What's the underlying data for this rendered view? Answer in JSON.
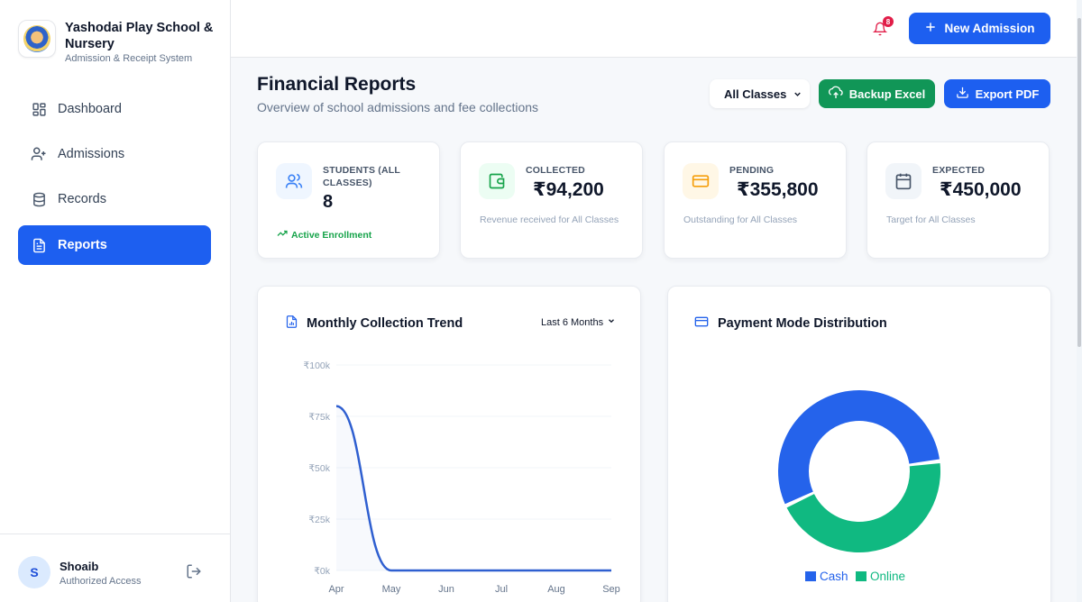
{
  "sidebar": {
    "brand_name": "Yashodai Play School & Nursery",
    "brand_sub": "Admission & Receipt System",
    "items": [
      {
        "label": "Dashboard",
        "icon": "grid-icon"
      },
      {
        "label": "Admissions",
        "icon": "user-plus-icon"
      },
      {
        "label": "Records",
        "icon": "database-icon"
      },
      {
        "label": "Reports",
        "icon": "file-text-icon",
        "active": true
      }
    ],
    "user": {
      "initial": "S",
      "name": "Shoaib",
      "role": "Authorized Access"
    }
  },
  "topbar": {
    "notification_count": "8",
    "new_admission_label": "New Admission"
  },
  "header": {
    "title": "Financial Reports",
    "subtitle": "Overview of school admissions and fee collections",
    "class_filter": "All Classes",
    "backup_label": "Backup Excel",
    "export_label": "Export PDF"
  },
  "stats": [
    {
      "label": "STUDENTS (ALL CLASSES)",
      "value": "8",
      "note": "Active Enrollment",
      "color": "#3b82f6"
    },
    {
      "label": "COLLECTED",
      "value": "₹94,200",
      "note": "Revenue received for All Classes",
      "color": "#16a34a"
    },
    {
      "label": "PENDING",
      "value": "₹355,800",
      "note": "Outstanding for All Classes",
      "color": "#f59e0b"
    },
    {
      "label": "EXPECTED",
      "value": "₹450,000",
      "note": "Target for All Classes",
      "color": "#475569"
    }
  ],
  "trend": {
    "title": "Monthly Collection Trend",
    "range": "Last 6 Months"
  },
  "distribution": {
    "title": "Payment Mode Distribution"
  },
  "chart_data": [
    {
      "type": "line",
      "title": "Monthly Collection Trend",
      "categories": [
        "Apr",
        "May",
        "Jun",
        "Jul",
        "Aug",
        "Sep"
      ],
      "values": [
        80000,
        0,
        0,
        0,
        0,
        0
      ],
      "yticks": [
        "₹0k",
        "₹25k",
        "₹50k",
        "₹75k",
        "₹100k"
      ],
      "ylim": [
        0,
        100000
      ],
      "color": "#2f5fd0"
    },
    {
      "type": "pie",
      "title": "Payment Mode Distribution",
      "labels": [
        "Cash",
        "Online"
      ],
      "values": [
        55,
        45
      ],
      "colors": [
        "#2563eb",
        "#10b981"
      ]
    }
  ]
}
